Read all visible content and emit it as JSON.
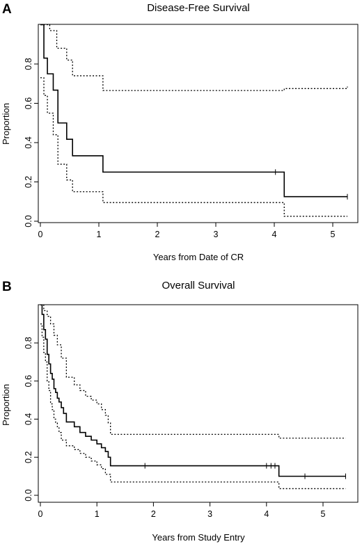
{
  "chart_data": [
    {
      "type": "line",
      "panel": "A",
      "title": "Disease-Free Survival",
      "xlabel": "Years from Date of CR",
      "ylabel": "Proportion",
      "xlim": [
        0,
        5.3
      ],
      "ylim": [
        0,
        1
      ],
      "xticks": [
        0,
        1,
        2,
        3,
        4,
        5
      ],
      "yticks": [
        0.0,
        0.2,
        0.4,
        0.6,
        0.8
      ],
      "grid": false,
      "series": [
        {
          "role": "estimate",
          "style": "solid",
          "x": [
            0,
            0.06,
            0.12,
            0.22,
            0.3,
            0.45,
            0.55,
            1.07,
            4.17,
            5.25
          ],
          "y": [
            1.0,
            0.83,
            0.75,
            0.667,
            0.5,
            0.417,
            0.333,
            0.25,
            0.125,
            0.125
          ],
          "censored": [
            [
              4.02,
              0.25
            ],
            [
              5.25,
              0.125
            ]
          ]
        },
        {
          "role": "upper-bound",
          "style": "dotted",
          "x": [
            0,
            0.16,
            0.28,
            0.45,
            0.55,
            1.07,
            4.17,
            5.25
          ],
          "y": [
            1.0,
            0.97,
            0.88,
            0.82,
            0.74,
            0.665,
            0.675,
            0.685
          ]
        },
        {
          "role": "lower-bound",
          "style": "dotted",
          "x": [
            0,
            0.06,
            0.12,
            0.22,
            0.3,
            0.45,
            0.55,
            1.07,
            4.17,
            5.25
          ],
          "y": [
            0.73,
            0.64,
            0.55,
            0.44,
            0.29,
            0.21,
            0.15,
            0.095,
            0.025,
            0.025
          ]
        }
      ]
    },
    {
      "type": "line",
      "panel": "B",
      "title": "Overall Survival",
      "xlabel": "Years from Study Entry",
      "ylabel": "Proportion",
      "xlim": [
        0,
        5.4
      ],
      "ylim": [
        0,
        1
      ],
      "xticks": [
        0,
        1,
        2,
        3,
        4,
        5
      ],
      "yticks": [
        0.0,
        0.2,
        0.4,
        0.6,
        0.8
      ],
      "grid": false,
      "series": [
        {
          "role": "estimate",
          "style": "solid",
          "x": [
            0,
            0.03,
            0.06,
            0.09,
            0.12,
            0.15,
            0.18,
            0.21,
            0.24,
            0.27,
            0.3,
            0.33,
            0.37,
            0.41,
            0.46,
            0.6,
            0.7,
            0.8,
            0.9,
            1.0,
            1.08,
            1.15,
            1.2,
            1.24,
            4.22,
            5.4
          ],
          "y": [
            1.0,
            0.95,
            0.87,
            0.82,
            0.74,
            0.69,
            0.64,
            0.61,
            0.56,
            0.54,
            0.51,
            0.49,
            0.46,
            0.43,
            0.385,
            0.36,
            0.33,
            0.31,
            0.29,
            0.27,
            0.25,
            0.23,
            0.2,
            0.155,
            0.1,
            0.1
          ],
          "censored": [
            [
              1.85,
              0.155
            ],
            [
              4.0,
              0.155
            ],
            [
              4.08,
              0.155
            ],
            [
              4.15,
              0.155
            ],
            [
              4.68,
              0.1
            ],
            [
              5.4,
              0.1
            ]
          ]
        },
        {
          "role": "upper-bound",
          "style": "dotted",
          "x": [
            0,
            0.06,
            0.12,
            0.18,
            0.24,
            0.3,
            0.37,
            0.46,
            0.6,
            0.7,
            0.8,
            0.9,
            1.0,
            1.08,
            1.15,
            1.2,
            1.24,
            4.22,
            5.4
          ],
          "y": [
            1.0,
            0.97,
            0.94,
            0.9,
            0.84,
            0.79,
            0.72,
            0.62,
            0.58,
            0.55,
            0.52,
            0.5,
            0.48,
            0.45,
            0.42,
            0.38,
            0.32,
            0.3,
            0.3
          ]
        },
        {
          "role": "lower-bound",
          "style": "dotted",
          "x": [
            0,
            0.03,
            0.06,
            0.09,
            0.12,
            0.15,
            0.18,
            0.21,
            0.24,
            0.27,
            0.3,
            0.33,
            0.37,
            0.46,
            0.6,
            0.7,
            0.8,
            0.9,
            1.0,
            1.08,
            1.15,
            1.24,
            4.22,
            5.4
          ],
          "y": [
            0.9,
            0.83,
            0.75,
            0.7,
            0.6,
            0.55,
            0.48,
            0.45,
            0.4,
            0.38,
            0.36,
            0.33,
            0.29,
            0.26,
            0.24,
            0.22,
            0.2,
            0.18,
            0.16,
            0.14,
            0.11,
            0.07,
            0.035,
            0.035
          ]
        }
      ]
    }
  ]
}
